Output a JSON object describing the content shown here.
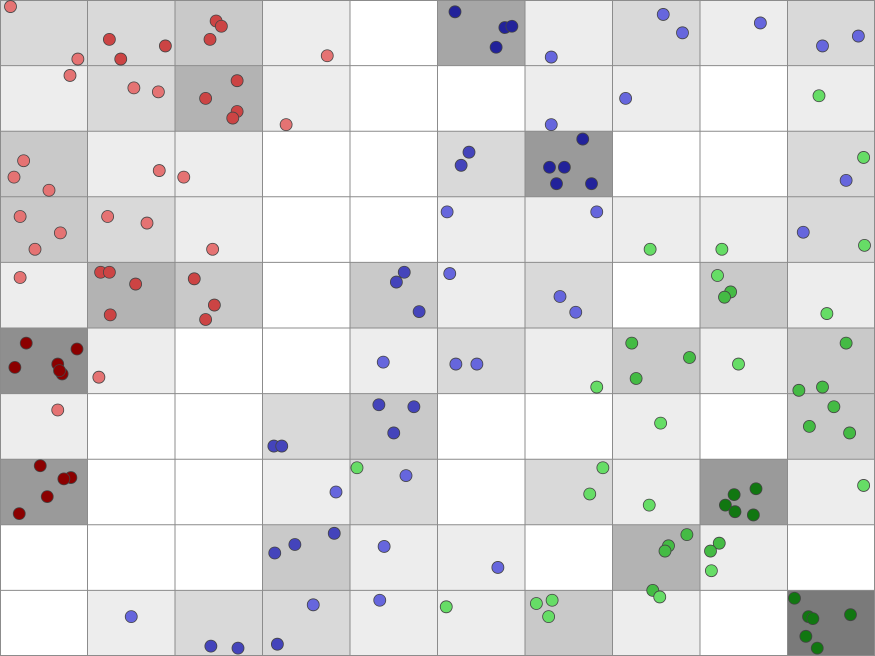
{
  "chart_data": {
    "type": "heatmap",
    "xlim": [
      0,
      10
    ],
    "ylim": [
      0,
      10
    ],
    "grid_cols": 10,
    "grid_rows": 10,
    "cell_colors": [
      [
        "#d9d9d9",
        "#d9d9d9",
        "#c9c9c9",
        "#ededed",
        "#ffffff",
        "#a6a6a6",
        "#ededed",
        "#d9d9d9",
        "#ededed",
        "#d9d9d9"
      ],
      [
        "#ededed",
        "#d9d9d9",
        "#b3b3b3",
        "#ededed",
        "#ffffff",
        "#ffffff",
        "#ededed",
        "#ededed",
        "#ffffff",
        "#ededed"
      ],
      [
        "#c9c9c9",
        "#ededed",
        "#ededed",
        "#ffffff",
        "#ffffff",
        "#d9d9d9",
        "#9a9a9a",
        "#ffffff",
        "#ffffff",
        "#d9d9d9"
      ],
      [
        "#c9c9c9",
        "#d9d9d9",
        "#ededed",
        "#ffffff",
        "#ffffff",
        "#ededed",
        "#ededed",
        "#ededed",
        "#ededed",
        "#d9d9d9"
      ],
      [
        "#ededed",
        "#b3b3b3",
        "#c9c9c9",
        "#ffffff",
        "#c9c9c9",
        "#ededed",
        "#d9d9d9",
        "#ffffff",
        "#c9c9c9",
        "#ededed"
      ],
      [
        "#8f8f8f",
        "#ededed",
        "#ffffff",
        "#ffffff",
        "#ededed",
        "#d9d9d9",
        "#ededed",
        "#c9c9c9",
        "#ededed",
        "#c9c9c9"
      ],
      [
        "#ededed",
        "#ffffff",
        "#ffffff",
        "#d9d9d9",
        "#c9c9c9",
        "#ffffff",
        "#ffffff",
        "#ededed",
        "#ffffff",
        "#c9c9c9"
      ],
      [
        "#9a9a9a",
        "#ffffff",
        "#ffffff",
        "#ededed",
        "#d9d9d9",
        "#ffffff",
        "#d9d9d9",
        "#ededed",
        "#9a9a9a",
        "#ededed"
      ],
      [
        "#ffffff",
        "#ffffff",
        "#ffffff",
        "#c9c9c9",
        "#ededed",
        "#ededed",
        "#ffffff",
        "#b3b3b3",
        "#ededed",
        "#ffffff"
      ],
      [
        "#ffffff",
        "#ededed",
        "#d9d9d9",
        "#d9d9d9",
        "#ededed",
        "#ededed",
        "#c9c9c9",
        "#ededed",
        "#ffffff",
        "#7a7a7a"
      ]
    ],
    "grid_line_color": "#8c8c8c",
    "marker_outline_color": "#444444",
    "series": [
      {
        "color_light": "#e57373",
        "color_mid": "#cc4444",
        "color_dark": "#8b0000",
        "points": [
          [
            0.12,
            9.9,
            "light"
          ],
          [
            0.89,
            9.1,
            "light"
          ],
          [
            1.25,
            9.4,
            "mid"
          ],
          [
            1.38,
            9.1,
            "mid"
          ],
          [
            1.89,
            9.3,
            "mid"
          ],
          [
            2.47,
            9.68,
            "mid"
          ],
          [
            2.53,
            9.6,
            "mid"
          ],
          [
            2.4,
            9.4,
            "mid"
          ],
          [
            3.74,
            9.15,
            "light"
          ],
          [
            0.8,
            8.85,
            "light"
          ],
          [
            1.53,
            8.66,
            "light"
          ],
          [
            1.81,
            8.6,
            "light"
          ],
          [
            2.71,
            8.77,
            "mid"
          ],
          [
            2.35,
            8.5,
            "mid"
          ],
          [
            2.71,
            8.3,
            "mid"
          ],
          [
            2.66,
            8.2,
            "mid"
          ],
          [
            3.27,
            8.1,
            "light"
          ],
          [
            0.27,
            7.55,
            "light"
          ],
          [
            0.16,
            7.3,
            "light"
          ],
          [
            0.56,
            7.1,
            "light"
          ],
          [
            1.82,
            7.4,
            "light"
          ],
          [
            2.1,
            7.3,
            "light"
          ],
          [
            0.23,
            6.7,
            "light"
          ],
          [
            0.69,
            6.45,
            "light"
          ],
          [
            0.4,
            6.2,
            "light"
          ],
          [
            1.23,
            6.7,
            "light"
          ],
          [
            1.68,
            6.6,
            "light"
          ],
          [
            2.43,
            6.2,
            "light"
          ],
          [
            0.23,
            5.77,
            "light"
          ],
          [
            1.15,
            5.85,
            "mid"
          ],
          [
            1.25,
            5.85,
            "mid"
          ],
          [
            1.55,
            5.67,
            "mid"
          ],
          [
            1.26,
            5.2,
            "mid"
          ],
          [
            2.22,
            5.75,
            "mid"
          ],
          [
            2.45,
            5.35,
            "mid"
          ],
          [
            2.35,
            5.13,
            "mid"
          ],
          [
            0.3,
            4.77,
            "dark"
          ],
          [
            0.88,
            4.68,
            "dark"
          ],
          [
            0.17,
            4.4,
            "dark"
          ],
          [
            0.66,
            4.45,
            "dark"
          ],
          [
            0.71,
            4.3,
            "dark"
          ],
          [
            0.68,
            4.35,
            "dark"
          ],
          [
            1.13,
            4.25,
            "light"
          ],
          [
            0.66,
            3.75,
            "light"
          ],
          [
            0.46,
            2.9,
            "dark"
          ],
          [
            0.81,
            2.72,
            "dark"
          ],
          [
            0.73,
            2.7,
            "dark"
          ],
          [
            0.54,
            2.43,
            "dark"
          ],
          [
            0.22,
            2.17,
            "dark"
          ]
        ]
      },
      {
        "color_light": "#6666dd",
        "color_mid": "#4444bb",
        "color_dark": "#22229a",
        "points": [
          [
            5.2,
            9.82,
            "dark"
          ],
          [
            5.77,
            9.58,
            "dark"
          ],
          [
            5.85,
            9.6,
            "dark"
          ],
          [
            5.67,
            9.28,
            "dark"
          ],
          [
            6.3,
            9.13,
            "light"
          ],
          [
            7.58,
            9.78,
            "light"
          ],
          [
            7.8,
            9.5,
            "light"
          ],
          [
            8.69,
            9.65,
            "light"
          ],
          [
            9.4,
            9.3,
            "light"
          ],
          [
            9.81,
            9.45,
            "light"
          ],
          [
            7.15,
            8.5,
            "light"
          ],
          [
            6.3,
            8.1,
            "light"
          ],
          [
            5.36,
            7.68,
            "mid"
          ],
          [
            5.27,
            7.48,
            "mid"
          ],
          [
            6.66,
            7.88,
            "dark"
          ],
          [
            6.28,
            7.45,
            "dark"
          ],
          [
            6.45,
            7.45,
            "dark"
          ],
          [
            6.36,
            7.2,
            "dark"
          ],
          [
            6.76,
            7.2,
            "dark"
          ],
          [
            9.67,
            7.25,
            "light"
          ],
          [
            5.11,
            6.77,
            "light"
          ],
          [
            6.82,
            6.77,
            "light"
          ],
          [
            9.18,
            6.46,
            "light"
          ],
          [
            4.62,
            5.85,
            "mid"
          ],
          [
            4.53,
            5.7,
            "mid"
          ],
          [
            4.79,
            5.25,
            "mid"
          ],
          [
            5.14,
            5.83,
            "light"
          ],
          [
            6.4,
            5.48,
            "light"
          ],
          [
            6.58,
            5.24,
            "light"
          ],
          [
            4.38,
            4.48,
            "light"
          ],
          [
            5.21,
            4.45,
            "light"
          ],
          [
            5.45,
            4.45,
            "light"
          ],
          [
            4.33,
            3.83,
            "mid"
          ],
          [
            4.73,
            3.8,
            "mid"
          ],
          [
            4.5,
            3.4,
            "mid"
          ],
          [
            3.13,
            3.2,
            "mid"
          ],
          [
            3.22,
            3.2,
            "mid"
          ],
          [
            4.64,
            2.75,
            "light"
          ],
          [
            3.84,
            2.5,
            "light"
          ],
          [
            3.82,
            1.87,
            "mid"
          ],
          [
            3.37,
            1.7,
            "mid"
          ],
          [
            3.14,
            1.57,
            "mid"
          ],
          [
            4.39,
            1.67,
            "light"
          ],
          [
            5.69,
            1.35,
            "light"
          ],
          [
            3.58,
            0.78,
            "light"
          ],
          [
            4.34,
            0.85,
            "light"
          ],
          [
            1.5,
            0.6,
            "light"
          ],
          [
            3.17,
            0.18,
            "mid"
          ],
          [
            2.41,
            0.15,
            "mid"
          ],
          [
            2.72,
            0.12,
            "mid"
          ]
        ]
      },
      {
        "color_light": "#66dd66",
        "color_mid": "#44bb44",
        "color_dark": "#117711",
        "points": [
          [
            9.36,
            8.54,
            "light"
          ],
          [
            9.87,
            7.6,
            "light"
          ],
          [
            9.88,
            6.26,
            "light"
          ],
          [
            7.43,
            6.2,
            "light"
          ],
          [
            8.25,
            6.2,
            "light"
          ],
          [
            8.2,
            5.8,
            "light"
          ],
          [
            8.35,
            5.55,
            "mid"
          ],
          [
            8.28,
            5.47,
            "mid"
          ],
          [
            9.45,
            5.22,
            "light"
          ],
          [
            7.22,
            4.77,
            "mid"
          ],
          [
            7.88,
            4.55,
            "mid"
          ],
          [
            7.27,
            4.23,
            "mid"
          ],
          [
            8.44,
            4.45,
            "light"
          ],
          [
            6.82,
            4.1,
            "light"
          ],
          [
            9.67,
            4.77,
            "mid"
          ],
          [
            9.4,
            4.1,
            "mid"
          ],
          [
            9.13,
            4.05,
            "mid"
          ],
          [
            7.55,
            3.55,
            "light"
          ],
          [
            9.53,
            3.8,
            "mid"
          ],
          [
            9.25,
            3.5,
            "mid"
          ],
          [
            9.71,
            3.4,
            "mid"
          ],
          [
            4.08,
            2.87,
            "light"
          ],
          [
            6.89,
            2.87,
            "light"
          ],
          [
            6.74,
            2.47,
            "light"
          ],
          [
            7.42,
            2.3,
            "light"
          ],
          [
            9.87,
            2.6,
            "light"
          ],
          [
            8.64,
            2.55,
            "dark"
          ],
          [
            8.39,
            2.46,
            "dark"
          ],
          [
            8.29,
            2.3,
            "dark"
          ],
          [
            8.4,
            2.2,
            "dark"
          ],
          [
            8.61,
            2.15,
            "dark"
          ],
          [
            7.85,
            1.85,
            "mid"
          ],
          [
            7.64,
            1.68,
            "mid"
          ],
          [
            7.6,
            1.6,
            "mid"
          ],
          [
            8.22,
            1.72,
            "mid"
          ],
          [
            8.12,
            1.6,
            "mid"
          ],
          [
            8.13,
            1.3,
            "light"
          ],
          [
            7.46,
            1.0,
            "mid"
          ],
          [
            5.1,
            0.75,
            "light"
          ],
          [
            6.13,
            0.8,
            "light"
          ],
          [
            6.31,
            0.85,
            "light"
          ],
          [
            6.27,
            0.6,
            "light"
          ],
          [
            7.54,
            0.9,
            "light"
          ],
          [
            9.08,
            0.88,
            "dark"
          ],
          [
            9.24,
            0.6,
            "dark"
          ],
          [
            9.29,
            0.57,
            "dark"
          ],
          [
            9.72,
            0.63,
            "dark"
          ],
          [
            9.21,
            0.3,
            "dark"
          ],
          [
            9.34,
            0.12,
            "dark"
          ]
        ]
      }
    ]
  }
}
